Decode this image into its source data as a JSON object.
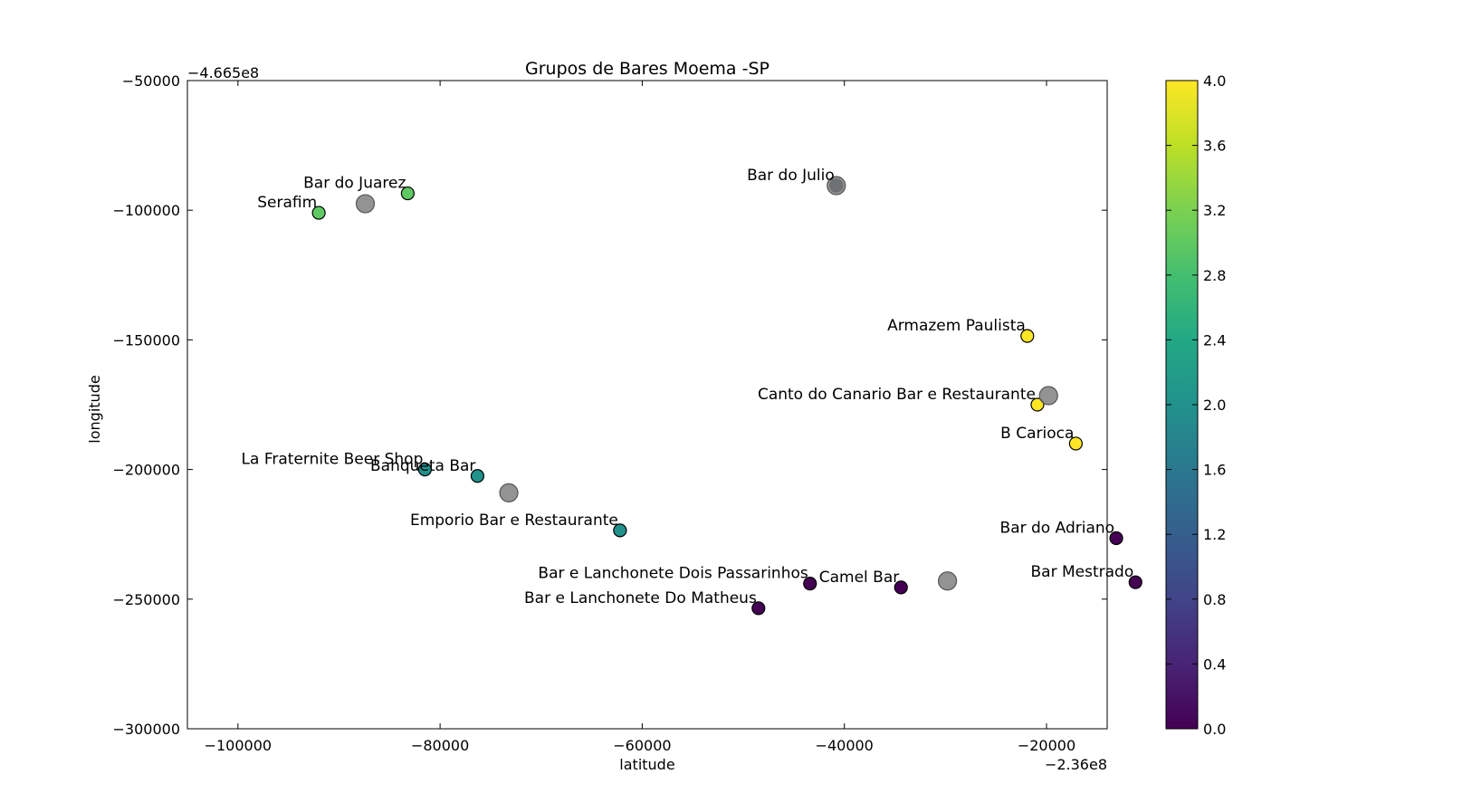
{
  "chart_data": {
    "type": "scatter",
    "title": "Grupos de Bares Moema -SP",
    "xlabel": "latitude",
    "ylabel": "longitude",
    "x_offset_label": "−2.36e8",
    "y_offset_label": "−4.665e8",
    "xlim": [
      -105000,
      -14000
    ],
    "ylim": [
      -300000,
      -50000
    ],
    "xticks": [
      -100000,
      -80000,
      -60000,
      -40000,
      -20000
    ],
    "xtick_labels": [
      "−100000",
      "−80000",
      "−60000",
      "−40000",
      "−20000"
    ],
    "yticks": [
      -50000,
      -100000,
      -150000,
      -200000,
      -250000,
      -300000
    ],
    "ytick_labels": [
      "−50000",
      "−100000",
      "−150000",
      "−200000",
      "−250000",
      "−300000"
    ],
    "colormap": "viridis",
    "color_range": [
      0,
      4
    ],
    "colorbar_ticks": [
      4.0,
      3.6,
      3.2,
      2.8,
      2.4,
      2.0,
      1.6,
      1.2,
      0.8,
      0.4,
      0.0
    ],
    "colorbar_tick_labels": [
      "4.0",
      "3.6",
      "3.2",
      "2.8",
      "2.4",
      "2.0",
      "1.6",
      "1.2",
      "0.8",
      "0.4",
      "0.0"
    ],
    "grid": false,
    "points": [
      {
        "label": "Serafim",
        "x": -92000,
        "y": -101000,
        "cluster": 3
      },
      {
        "label": "Bar do Juarez",
        "x": -83200,
        "y": -93500,
        "cluster": 3
      },
      {
        "label": "Bar do Julio",
        "x": -40800,
        "y": -90500,
        "cluster": 1
      },
      {
        "label": "Armazem Paulista",
        "x": -21900,
        "y": -148500,
        "cluster": 4
      },
      {
        "label": "Canto do Canario Bar e Restaurante",
        "x": -20900,
        "y": -175000,
        "cluster": 4
      },
      {
        "label": "B Carioca",
        "x": -17100,
        "y": -190000,
        "cluster": 4
      },
      {
        "label": "La Fraternite Beer Shop",
        "x": -81500,
        "y": -200000,
        "cluster": 2
      },
      {
        "label": "Banqueta Bar",
        "x": -76300,
        "y": -202500,
        "cluster": 2
      },
      {
        "label": "Emporio Bar e Restaurante",
        "x": -62200,
        "y": -223500,
        "cluster": 2
      },
      {
        "label": "Bar do Adriano",
        "x": -13100,
        "y": -226500,
        "cluster": 0
      },
      {
        "label": "Bar e Lanchonete Dois Passarinhos",
        "x": -43400,
        "y": -244000,
        "cluster": 0
      },
      {
        "label": "Camel Bar",
        "x": -34400,
        "y": -245500,
        "cluster": 0
      },
      {
        "label": "Bar Mestrado",
        "x": -11200,
        "y": -243500,
        "cluster": 0
      },
      {
        "label": "Bar e Lanchonete Do Matheus",
        "x": -48500,
        "y": -253500,
        "cluster": 0
      }
    ],
    "centroids": [
      {
        "x": -87400,
        "y": -97500
      },
      {
        "x": -40800,
        "y": -90500
      },
      {
        "x": -19800,
        "y": -171500
      },
      {
        "x": -73200,
        "y": -209000
      },
      {
        "x": -29800,
        "y": -243000
      }
    ],
    "colors": {
      "centroid": "#808080",
      "cluster_0": "#440154",
      "cluster_1": "#0d1b4c",
      "cluster_2": "#21918c",
      "cluster_3": "#5ec962",
      "cluster_4": "#fde725"
    }
  }
}
